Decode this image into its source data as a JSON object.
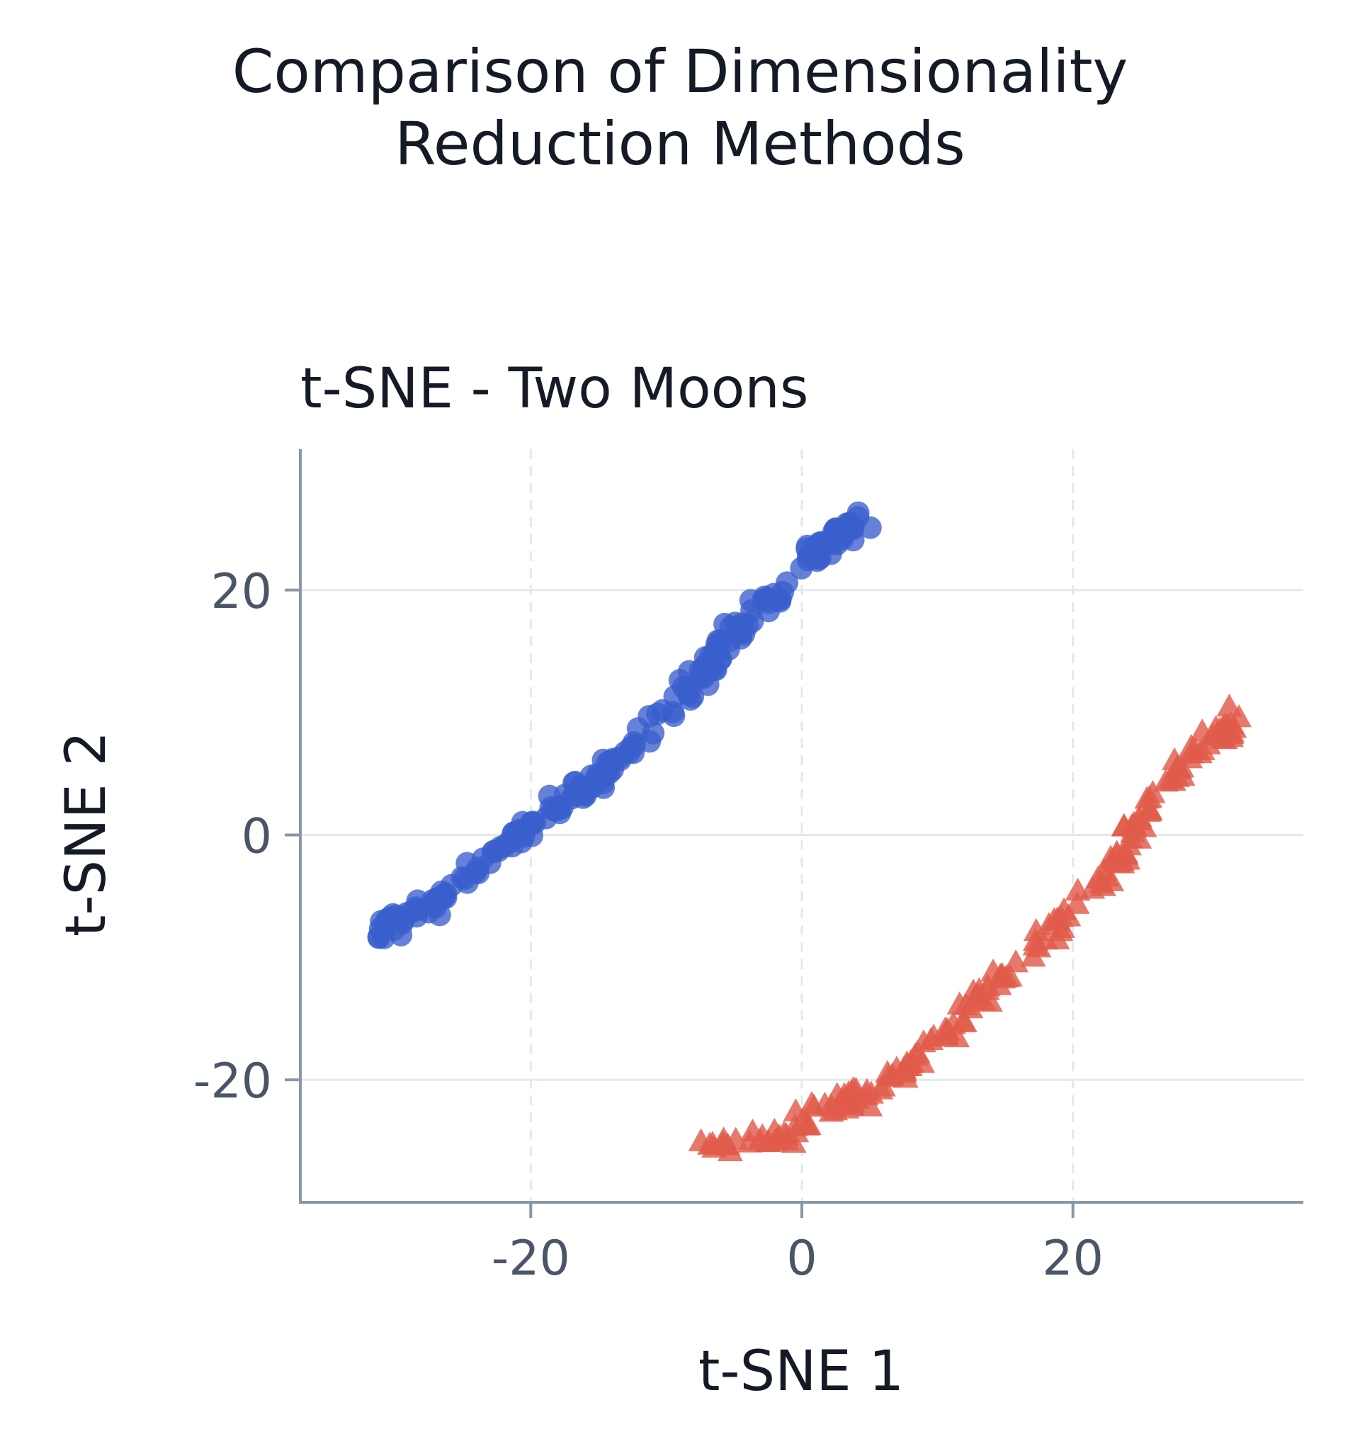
{
  "figure": {
    "title_line1": "Comparison of Dimensionality",
    "title_line2": "Reduction Methods"
  },
  "colors": {
    "series_0": "#3a5fcd",
    "series_1": "#e05c4a",
    "axis": "#8a97aa",
    "grid": "#e3e8ef",
    "tick_text": "#4a5568",
    "title_text": "#141a26"
  },
  "chart_data": {
    "type": "scatter",
    "title": "t-SNE - Two Moons",
    "xlabel": "t-SNE 1",
    "ylabel": "t-SNE 2",
    "xlim": [
      -37,
      37
    ],
    "ylim": [
      -30,
      31.5
    ],
    "xticks": [
      -20,
      0,
      20
    ],
    "yticks": [
      -20,
      0,
      20
    ],
    "xtick_labels": [
      "-20",
      "0",
      "20"
    ],
    "ytick_labels": [
      "-20",
      "0",
      "20"
    ],
    "grid": true,
    "legend": "none",
    "series": [
      {
        "marker": "circle",
        "color": "#3a5fcd",
        "trend": [
          [
            -31,
            -7.8
          ],
          [
            -29,
            -6.6
          ],
          [
            -27,
            -5.5
          ],
          [
            -25,
            -3.8
          ],
          [
            -23,
            -2.0
          ],
          [
            -21,
            -0.3
          ],
          [
            -19,
            1.5
          ],
          [
            -17,
            3.0
          ],
          [
            -15,
            4.5
          ],
          [
            -13,
            6.5
          ],
          [
            -11,
            8.8
          ],
          [
            -9,
            11.2
          ],
          [
            -7,
            13.6
          ],
          [
            -5,
            16.5
          ],
          [
            -3,
            18.8
          ],
          [
            -1,
            20.3
          ],
          [
            1,
            23.0
          ],
          [
            3,
            24.8
          ],
          [
            5,
            25.8
          ]
        ],
        "count": 200
      },
      {
        "marker": "triangle",
        "color": "#e05c4a",
        "trend": [
          [
            -7,
            -24.8
          ],
          [
            -5,
            -25.0
          ],
          [
            -3,
            -25.0
          ],
          [
            -1,
            -24.2
          ],
          [
            1,
            -22.2
          ],
          [
            3,
            -21.6
          ],
          [
            5,
            -21.0
          ],
          [
            7,
            -19.5
          ],
          [
            9,
            -17.8
          ],
          [
            11,
            -15.8
          ],
          [
            13,
            -13.2
          ],
          [
            15,
            -11.2
          ],
          [
            17,
            -9.3
          ],
          [
            19,
            -7.3
          ],
          [
            21,
            -4.8
          ],
          [
            23,
            -2.3
          ],
          [
            25,
            1.5
          ],
          [
            27,
            4.5
          ],
          [
            29,
            6.8
          ],
          [
            31,
            8.3
          ],
          [
            32,
            9.3
          ]
        ],
        "count": 200
      }
    ]
  }
}
